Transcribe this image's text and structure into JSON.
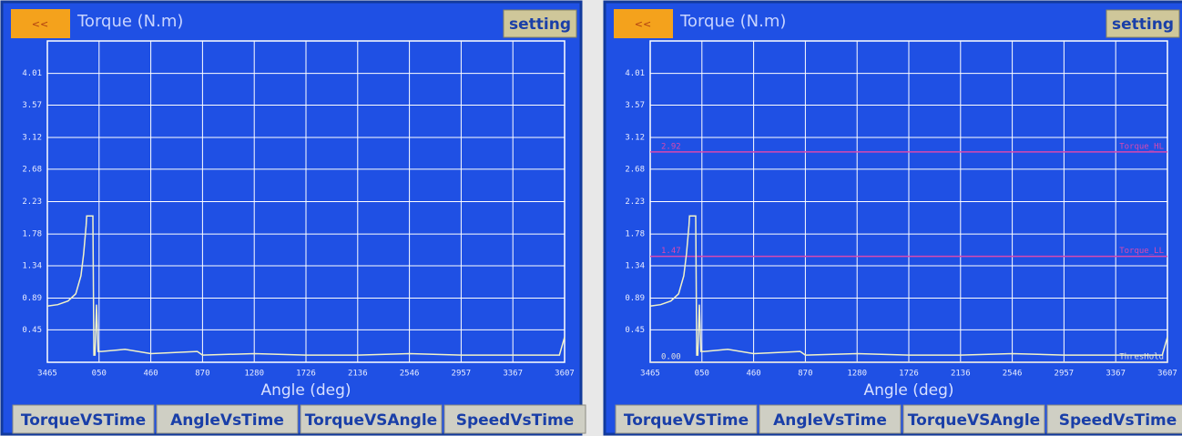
{
  "panels": [
    {
      "back": "<<",
      "title": "Torque (N.m)",
      "setting": "setting",
      "x_label": "Angle (deg)",
      "chart": {
        "type": "line",
        "ylim": [
          0,
          4.46
        ],
        "yticks": [
          0.45,
          0.89,
          1.34,
          1.78,
          2.23,
          2.68,
          3.12,
          3.57,
          4.01
        ],
        "xlim": [
          0,
          10
        ],
        "xticks": [
          {
            "value": 0,
            "label": "3465"
          },
          {
            "value": 1,
            "label": "050"
          },
          {
            "value": 2,
            "label": "460"
          },
          {
            "value": 3,
            "label": "870"
          },
          {
            "value": 4,
            "label": "1280"
          },
          {
            "value": 5,
            "label": "1726"
          },
          {
            "value": 6,
            "label": "2136"
          },
          {
            "value": 7,
            "label": "2546"
          },
          {
            "value": 8,
            "label": "2957"
          },
          {
            "value": 9,
            "label": "3367"
          },
          {
            "value": 10,
            "label": "3607"
          }
        ],
        "grid": true,
        "series": [
          {
            "color": "#f2f2c8",
            "x": [
              0,
              0.2,
              0.4,
              0.55,
              0.65,
              0.7,
              0.75,
              0.76,
              0.88,
              0.9,
              0.92,
              0.95,
              0.98,
              1.05,
              1.5,
              2,
              2.9,
              3,
              4,
              5,
              6,
              7,
              8,
              9,
              9.9,
              10
            ],
            "values": [
              0.78,
              0.8,
              0.85,
              0.95,
              1.2,
              1.5,
              1.9,
              2.03,
              2.03,
              0.1,
              0.1,
              0.8,
              0.15,
              0.15,
              0.18,
              0.12,
              0.15,
              0.1,
              0.12,
              0.1,
              0.1,
              0.12,
              0.1,
              0.1,
              0.1,
              0.35
            ]
          }
        ],
        "thresholds": []
      },
      "tabs": [
        "TorqueVSTime",
        "AngleVsTime",
        "TorqueVSAngle",
        "SpeedVsTime"
      ]
    },
    {
      "back": "<<",
      "title": "Torque (N.m)",
      "setting": "setting",
      "x_label": "Angle (deg)",
      "chart": {
        "type": "line",
        "ylim": [
          0,
          4.46
        ],
        "yticks": [
          0.45,
          0.89,
          1.34,
          1.78,
          2.23,
          2.68,
          3.12,
          3.57,
          4.01
        ],
        "xlim": [
          0,
          10
        ],
        "xticks": [
          {
            "value": 0,
            "label": "3465"
          },
          {
            "value": 1,
            "label": "050"
          },
          {
            "value": 2,
            "label": "460"
          },
          {
            "value": 3,
            "label": "870"
          },
          {
            "value": 4,
            "label": "1280"
          },
          {
            "value": 5,
            "label": "1726"
          },
          {
            "value": 6,
            "label": "2136"
          },
          {
            "value": 7,
            "label": "2546"
          },
          {
            "value": 8,
            "label": "2957"
          },
          {
            "value": 9,
            "label": "3367"
          },
          {
            "value": 10,
            "label": "3607"
          }
        ],
        "grid": true,
        "series": [
          {
            "color": "#f2f2c8",
            "x": [
              0,
              0.2,
              0.4,
              0.55,
              0.65,
              0.7,
              0.75,
              0.76,
              0.88,
              0.9,
              0.92,
              0.95,
              0.98,
              1.05,
              1.5,
              2,
              2.9,
              3,
              4,
              5,
              6,
              7,
              8,
              9,
              9.9,
              10
            ],
            "values": [
              0.78,
              0.8,
              0.85,
              0.95,
              1.2,
              1.5,
              1.9,
              2.03,
              2.03,
              0.1,
              0.1,
              0.8,
              0.15,
              0.15,
              0.18,
              0.12,
              0.15,
              0.1,
              0.12,
              0.1,
              0.1,
              0.12,
              0.1,
              0.1,
              0.1,
              0.35
            ]
          }
        ],
        "thresholds": [
          {
            "value": 2.92,
            "label": "2.92",
            "name": "Torque_HL",
            "color": "#d848b0"
          },
          {
            "value": 1.47,
            "label": "1.47",
            "name": "Torque_LL",
            "color": "#d848b0"
          },
          {
            "value": 0,
            "label": "0.00",
            "name": "ThresHold",
            "color": "#e0e0e0"
          }
        ]
      },
      "tabs": [
        "TorqueVSTime",
        "AngleVsTime",
        "TorqueVSAngle",
        "SpeedVsTime"
      ]
    }
  ]
}
